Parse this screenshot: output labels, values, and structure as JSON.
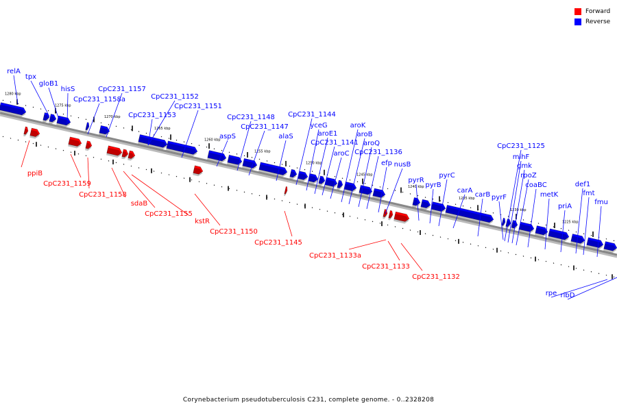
{
  "caption": "Corynebacterium pseudotuberculosis C231, complete genome. - 0..2328208",
  "legend": [
    {
      "label": "Forward",
      "color": "#ff0000"
    },
    {
      "label": "Reverse",
      "color": "#0000ff"
    }
  ],
  "colors": {
    "forward": "#ff0000",
    "reverse": "#0000ff",
    "backbone": "#888888"
  },
  "kbp_ticks": [
    "1280 kbp",
    "1275 kbp",
    "1270 kbp",
    "1265 kbp",
    "1260 kbp",
    "1255 kbp",
    "1250 kbp",
    "1245 kbp",
    "1240 kbp",
    "1235 kbp",
    "1230 kbp",
    "1225 kbp"
  ],
  "reverse_genes": [
    "relA",
    "tpx",
    "gloB1",
    "hisS",
    "CpC231_1157",
    "CpC231_1158a",
    "CpC231_1152",
    "CpC231_1151",
    "CpC231_1153",
    "aspS",
    "CpC231_1148",
    "CpC231_1147",
    "alaS",
    "CpC231_1144",
    "yceG",
    "aroE1",
    "CpC231_1141",
    "aroK",
    "aroB",
    "aroQ",
    "aroC",
    "CpC231_1136",
    "efp",
    "nusB",
    "pyrR",
    "pyrB",
    "pyrC",
    "carA",
    "carB",
    "pyrF",
    "CpC231_1125",
    "mihF",
    "gmk",
    "rpoZ",
    "coaBC",
    "metK",
    "priA",
    "def1",
    "fmt",
    "fmu",
    "rpe",
    "ribD"
  ],
  "forward_genes": [
    "ppiB",
    "CpC231_1159",
    "CpC231_1158",
    "sdaB",
    "CpC231_1155",
    "kstR",
    "CpC231_1150",
    "CpC231_1145",
    "CpC231_1133a",
    "CpC231_1133",
    "CpC231_1132"
  ]
}
